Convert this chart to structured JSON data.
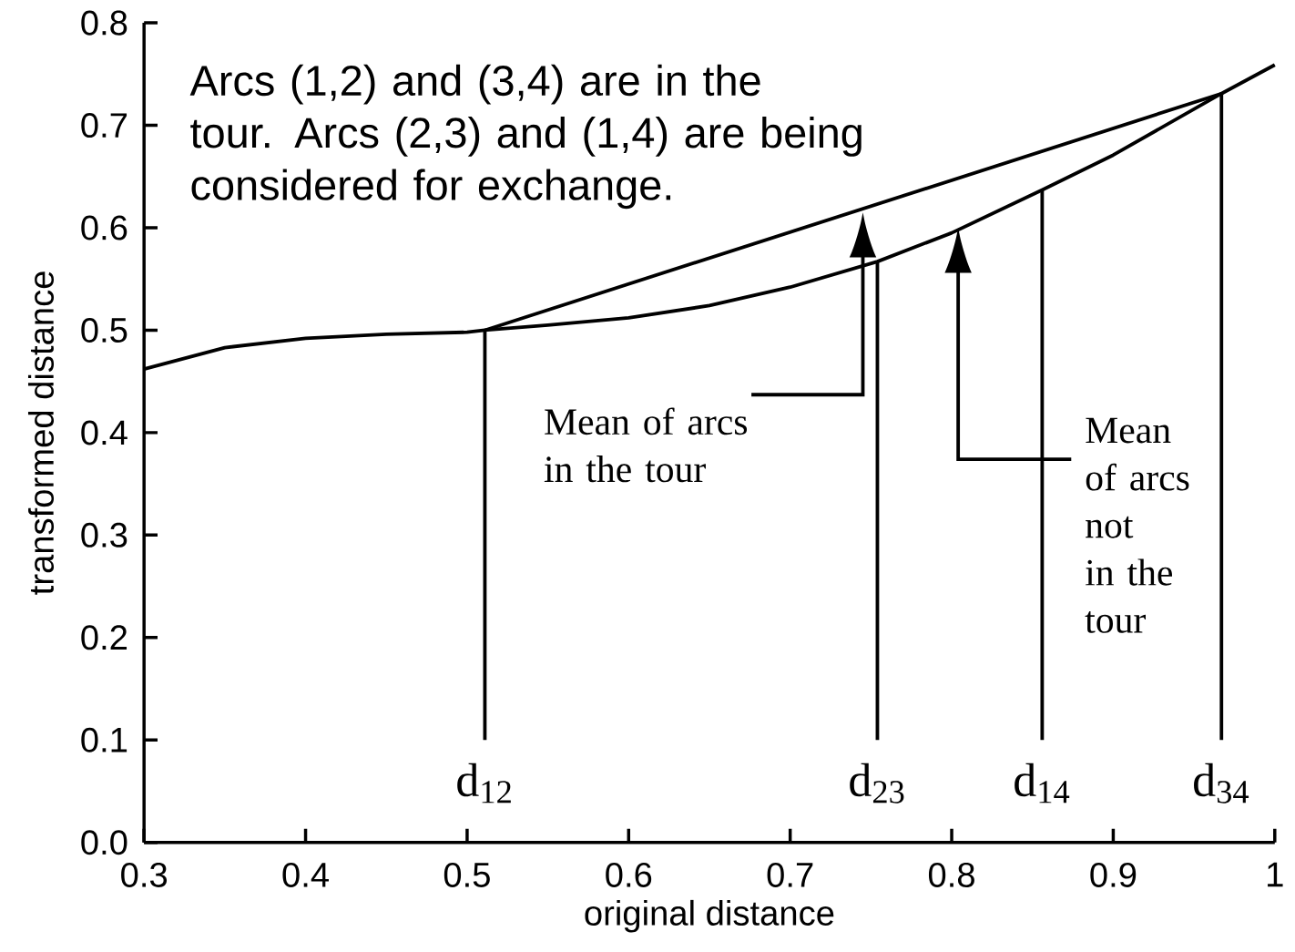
{
  "chart_data": {
    "type": "line",
    "xlabel": "original distance",
    "ylabel": "transformed distance",
    "xlim": [
      0.3,
      1.0
    ],
    "ylim": [
      0,
      0.8
    ],
    "xticks": [
      0.3,
      0.4,
      0.5,
      0.6,
      0.7,
      0.8,
      0.9,
      1
    ],
    "yticks": [
      {
        "value": 0,
        "label": "0.0"
      },
      0.1,
      0.2,
      0.3,
      0.4,
      0.5,
      0.6,
      0.7,
      0.8
    ],
    "series": [
      {
        "color": "#000000",
        "x": [
          0.3,
          0.35,
          0.4,
          0.45,
          0.5,
          0.511,
          0.55,
          0.6,
          0.65,
          0.7,
          0.754,
          0.8,
          0.856,
          0.9,
          0.967,
          1.0
        ],
        "values": [
          0.462,
          0.483,
          0.492,
          0.496,
          0.498,
          0.5,
          0.505,
          0.512,
          0.524,
          0.542,
          0.567,
          0.595,
          0.637,
          0.671,
          0.731,
          0.759
        ]
      },
      {
        "color": "#000000",
        "x": [
          0.511,
          0.967
        ],
        "values": [
          0.5,
          0.731
        ]
      },
      {
        "color": "#000000",
        "x": [
          0.511,
          0.511
        ],
        "values": [
          0.1,
          0.5
        ]
      },
      {
        "color": "#000000",
        "x": [
          0.754,
          0.754
        ],
        "values": [
          0.1,
          0.567
        ]
      },
      {
        "color": "#000000",
        "x": [
          0.856,
          0.856
        ],
        "values": [
          0.1,
          0.637
        ]
      },
      {
        "color": "#000000",
        "x": [
          0.967,
          0.967
        ],
        "values": [
          0.1,
          0.731
        ]
      }
    ],
    "annotations": [
      "Arcs (1,2) and (3,4) are in the tour. Arcs (2,3) and (1,4) are being considered for exchange.",
      "Mean of arcs in the tour",
      "Mean of arcs not in the tour",
      {
        "text": "d$_{12}$",
        "x": 0.511,
        "y": 0.1
      },
      {
        "text": "d$_{23}$",
        "x": 0.754,
        "y": 0.1
      },
      {
        "text": "d$_{14}$",
        "x": 0.856,
        "y": 0.1
      },
      {
        "text": "d$_{34}$",
        "x": 0.967,
        "y": 0.1
      }
    ]
  }
}
